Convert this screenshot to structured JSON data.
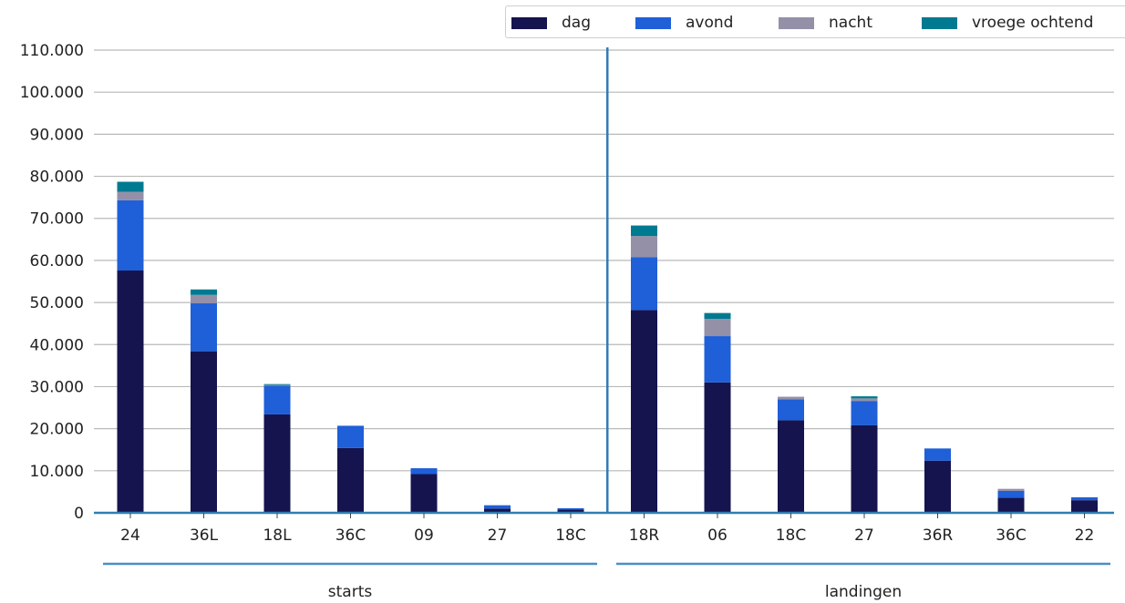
{
  "chart_data": {
    "type": "bar",
    "stacked": true,
    "title": "",
    "xlabel": "",
    "ylabel": "",
    "ylim": [
      0,
      110000
    ],
    "yticks": [
      0,
      10000,
      20000,
      30000,
      40000,
      50000,
      60000,
      70000,
      80000,
      90000,
      100000,
      110000
    ],
    "ytick_labels": [
      "0",
      "10.000",
      "20.000",
      "30.000",
      "40.000",
      "50.000",
      "60.000",
      "70.000",
      "80.000",
      "90.000",
      "100.000",
      "110.000"
    ],
    "grid": "horizontal",
    "legend_position": "top-right",
    "categories": [
      "24",
      "36L",
      "18L",
      "36C",
      "09",
      "27",
      "18C",
      "18R",
      "06",
      "18C",
      "27",
      "36R",
      "36C",
      "22"
    ],
    "groups": [
      {
        "label": "starts",
        "count": 7
      },
      {
        "label": "landingen",
        "count": 7
      }
    ],
    "series": [
      {
        "name": "dag",
        "color": "#15144f",
        "values": [
          57600,
          38400,
          23400,
          15400,
          9200,
          1000,
          800,
          48200,
          31000,
          22000,
          20800,
          12400,
          3600,
          3000
        ]
      },
      {
        "name": "avond",
        "color": "#1f5fd8",
        "values": [
          16700,
          11400,
          6800,
          5300,
          1400,
          800,
          300,
          12600,
          11000,
          5000,
          5800,
          2900,
          1600,
          700
        ]
      },
      {
        "name": "nacht",
        "color": "#9490a8",
        "values": [
          2000,
          2000,
          200,
          0,
          0,
          0,
          0,
          5000,
          4100,
          600,
          600,
          0,
          500,
          0
        ]
      },
      {
        "name": "vroege ochtend",
        "color": "#007a91",
        "values": [
          2400,
          1300,
          200,
          0,
          0,
          0,
          0,
          2500,
          1400,
          0,
          500,
          0,
          0,
          0
        ]
      }
    ]
  }
}
